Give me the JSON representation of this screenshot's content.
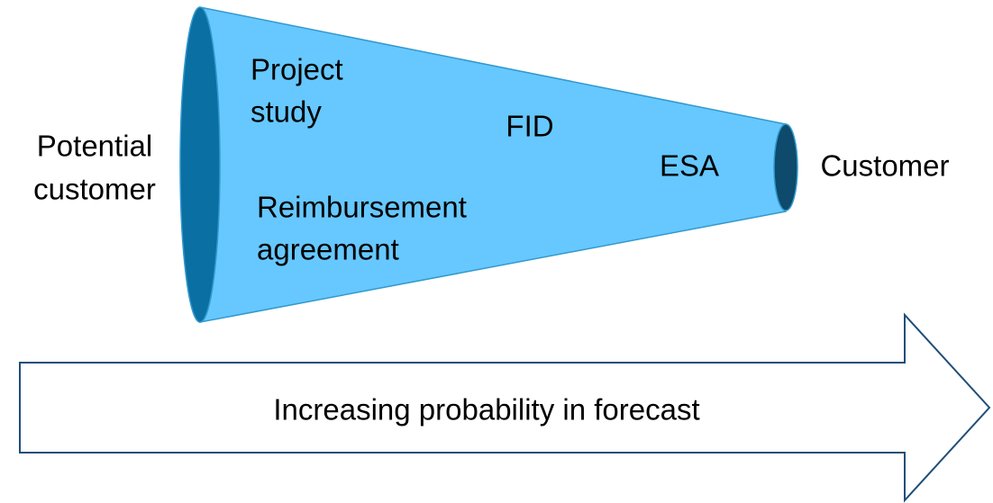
{
  "funnel": {
    "start": {
      "lines": [
        "Potential",
        "customer"
      ]
    },
    "stages": [
      {
        "lines": [
          "Project",
          "study"
        ]
      },
      {
        "lines": [
          "FID"
        ]
      },
      {
        "lines": [
          "ESA"
        ]
      },
      {
        "lines": [
          "Reimbursement",
          "agreement"
        ]
      }
    ],
    "end": {
      "lines": [
        "Customer"
      ]
    }
  },
  "arrow": {
    "label": "Increasing probability in forecast"
  }
}
